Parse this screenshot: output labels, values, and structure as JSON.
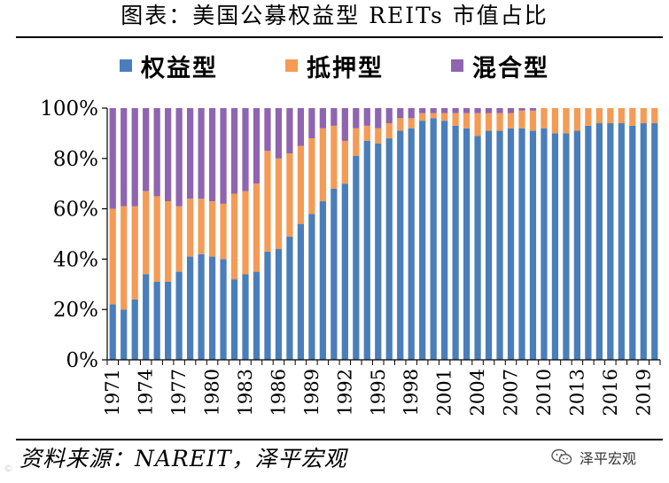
{
  "chart_data": {
    "type": "bar",
    "stacked": true,
    "title": "图表：美国公募权益型 REITs 市值占比",
    "xlabel": "",
    "ylabel": "",
    "ylim": [
      0,
      100
    ],
    "yticks": [
      "0%",
      "20%",
      "40%",
      "60%",
      "80%",
      "100%"
    ],
    "categories": [
      1971,
      1972,
      1973,
      1974,
      1975,
      1976,
      1977,
      1978,
      1979,
      1980,
      1981,
      1982,
      1983,
      1984,
      1985,
      1986,
      1987,
      1988,
      1989,
      1990,
      1991,
      1992,
      1993,
      1994,
      1995,
      1996,
      1997,
      1998,
      1999,
      2000,
      2001,
      2002,
      2003,
      2004,
      2005,
      2006,
      2007,
      2008,
      2009,
      2010,
      2011,
      2012,
      2013,
      2014,
      2015,
      2016,
      2017,
      2018,
      2019,
      2020
    ],
    "xtick_labels": [
      "1971",
      "1974",
      "1977",
      "1980",
      "1983",
      "1986",
      "1989",
      "1992",
      "1995",
      "1998",
      "2001",
      "2004",
      "2007",
      "2010",
      "2013",
      "2016",
      "2019"
    ],
    "series": [
      {
        "name": "权益型",
        "color": "#4a7ebb",
        "values": [
          22,
          20,
          24,
          34,
          31,
          31,
          35,
          41,
          42,
          41,
          40,
          32,
          34,
          35,
          43,
          44,
          49,
          54,
          58,
          63,
          68,
          70,
          81,
          87,
          86,
          88,
          91,
          92,
          95,
          96,
          95,
          93,
          92,
          89,
          91,
          91,
          92,
          92,
          91,
          92,
          90,
          90,
          91,
          93,
          94,
          94,
          94,
          93,
          94,
          94
        ]
      },
      {
        "name": "抵押型",
        "color": "#f49b55",
        "values": [
          38,
          41,
          37,
          33,
          34,
          32,
          26,
          23,
          22,
          22,
          22,
          34,
          33,
          35,
          40,
          36,
          33,
          31,
          30,
          29,
          25,
          17,
          11,
          6,
          6,
          6,
          5,
          4,
          3,
          2,
          3,
          5,
          6,
          9,
          7,
          7,
          6,
          7,
          8,
          8,
          10,
          10,
          9,
          7,
          6,
          6,
          6,
          7,
          6,
          6
        ]
      },
      {
        "name": "混合型",
        "color": "#8f64b0",
        "values": [
          40,
          39,
          39,
          33,
          35,
          37,
          39,
          36,
          36,
          37,
          38,
          34,
          33,
          30,
          17,
          20,
          18,
          15,
          12,
          8,
          7,
          13,
          8,
          7,
          8,
          6,
          4,
          4,
          2,
          2,
          2,
          2,
          2,
          2,
          2,
          2,
          2,
          1,
          1,
          0,
          0,
          0,
          0,
          0,
          0,
          0,
          0,
          0,
          0,
          0
        ]
      }
    ]
  },
  "source_text": "资料来源：NAREIT，泽平宏观",
  "watermark_text": "泽平宏观"
}
